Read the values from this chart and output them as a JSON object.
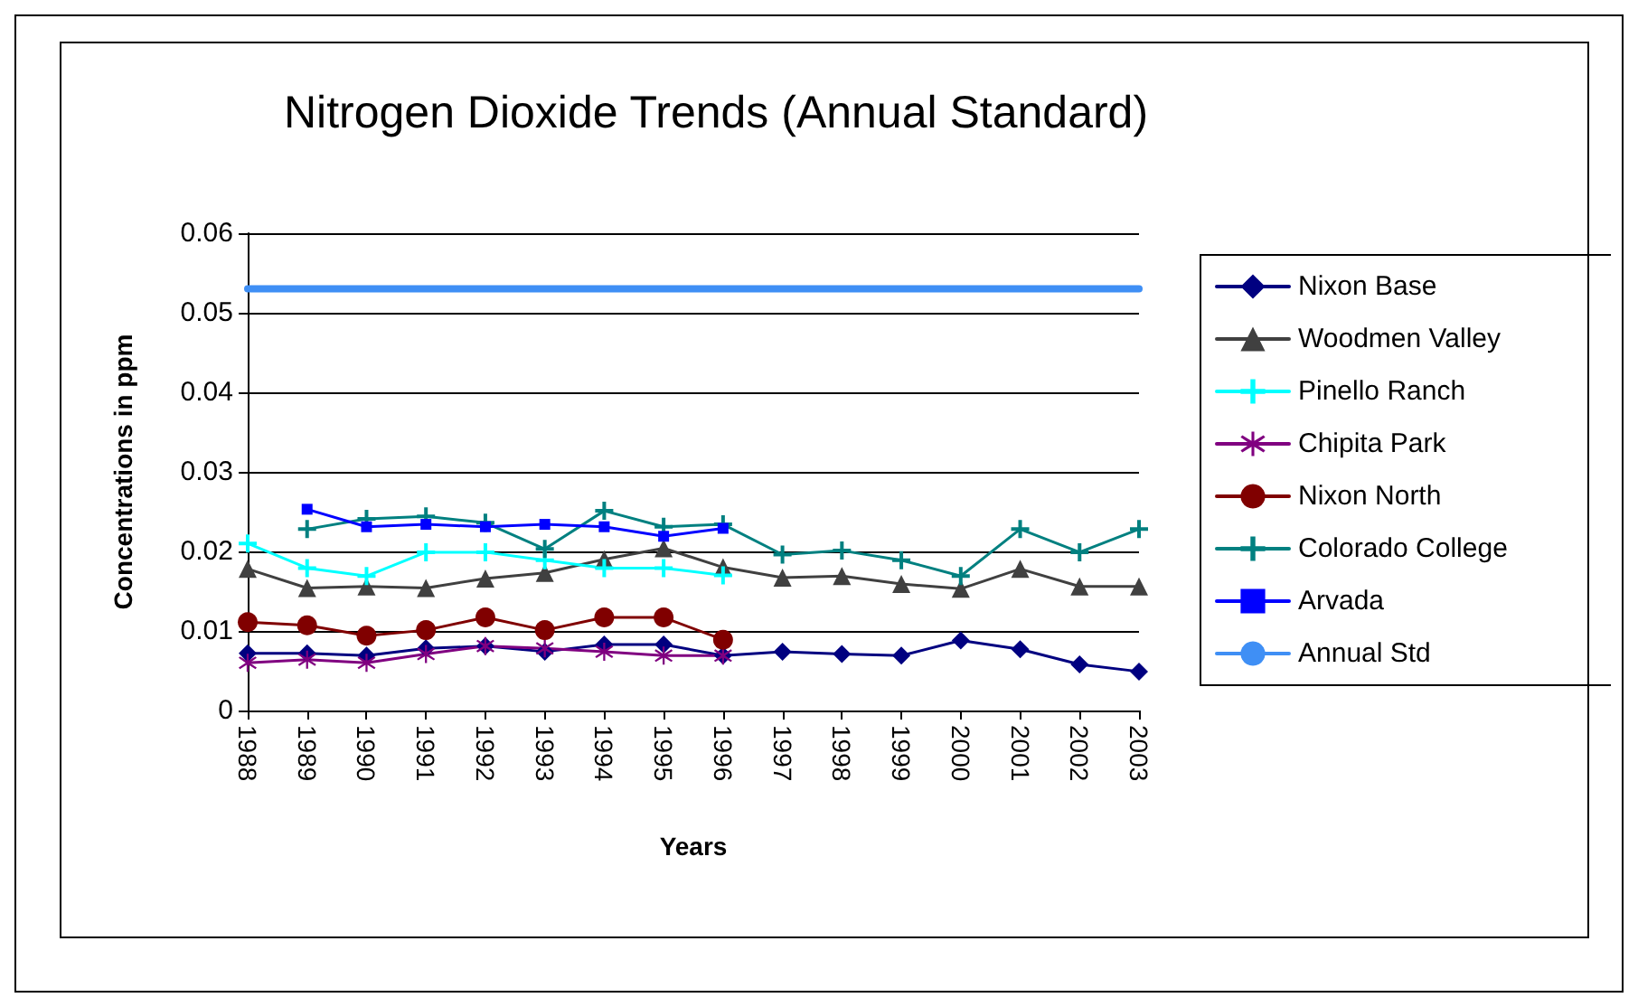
{
  "chart_data": {
    "type": "line",
    "title": "Nitrogen Dioxide Trends (Annual Standard)",
    "xlabel": "Years",
    "ylabel": "Concentrations in ppm",
    "categories": [
      "1988",
      "1989",
      "1990",
      "1991",
      "1992",
      "1993",
      "1994",
      "1995",
      "1996",
      "1997",
      "1998",
      "1999",
      "2000",
      "2001",
      "2002",
      "2003"
    ],
    "series": [
      {
        "name": "Nixon Base",
        "color": "#000080",
        "marker": "diamond",
        "values": [
          0.0072,
          0.0072,
          0.0069,
          0.0078,
          0.0081,
          0.0074,
          0.0083,
          0.0083,
          0.0069,
          0.0074,
          0.0071,
          0.0069,
          0.0088,
          0.0077,
          0.0058,
          0.0049
        ]
      },
      {
        "name": "Woodmen Valley",
        "color": "#404040",
        "marker": "triangle",
        "values": [
          0.0178,
          0.0154,
          0.0156,
          0.0154,
          0.0166,
          0.0173,
          0.019,
          0.0204,
          0.018,
          0.0167,
          0.0169,
          0.0159,
          0.0153,
          0.0178,
          0.0156,
          0.0156
        ]
      },
      {
        "name": "Pinello Ranch",
        "color": "#00ffff",
        "marker": "cross",
        "values": [
          0.021,
          0.0179,
          0.0169,
          0.0199,
          0.0199,
          0.0189,
          0.0179,
          0.0179,
          0.017,
          null,
          null,
          null,
          null,
          null,
          null,
          null
        ]
      },
      {
        "name": "Chipita Park",
        "color": "#800080",
        "marker": "star",
        "values": [
          0.006,
          0.0064,
          0.006,
          0.0071,
          0.0081,
          0.0078,
          0.0074,
          0.0069,
          0.0069,
          null,
          null,
          null,
          null,
          null,
          null,
          null
        ]
      },
      {
        "name": "Nixon North",
        "color": "#800000",
        "marker": "circle",
        "values": [
          0.0111,
          0.0107,
          0.0094,
          0.0101,
          0.0117,
          0.0101,
          0.0117,
          0.0117,
          0.0089,
          null,
          null,
          null,
          null,
          null,
          null,
          null
        ]
      },
      {
        "name": "Colorado College",
        "color": "#008080",
        "marker": "cross",
        "values": [
          null,
          0.0228,
          0.0241,
          0.0244,
          0.0236,
          0.0203,
          0.0251,
          0.0231,
          0.0234,
          0.0196,
          0.0201,
          0.0189,
          0.0169,
          0.0228,
          0.0199,
          0.0228
        ]
      },
      {
        "name": "Arvada",
        "color": "#0000ff",
        "marker": "square",
        "values": [
          null,
          0.0253,
          0.0231,
          0.0234,
          0.0231,
          0.0234,
          0.0231,
          0.0219,
          0.0229,
          null,
          null,
          null,
          null,
          null,
          null,
          null
        ]
      },
      {
        "name": "Annual Std",
        "color": "#3f8ff5",
        "marker": "none",
        "values": [
          0.053,
          0.053,
          0.053,
          0.053,
          0.053,
          0.053,
          0.053,
          0.053,
          0.053,
          0.053,
          0.053,
          0.053,
          0.053,
          0.053,
          0.053,
          0.053
        ]
      }
    ],
    "ylim": [
      0,
      0.06
    ],
    "yticks": [
      0,
      0.01,
      0.02,
      0.03,
      0.04,
      0.05,
      0.06
    ],
    "grid": "y",
    "legend": "right",
    "line_style": "solid"
  }
}
